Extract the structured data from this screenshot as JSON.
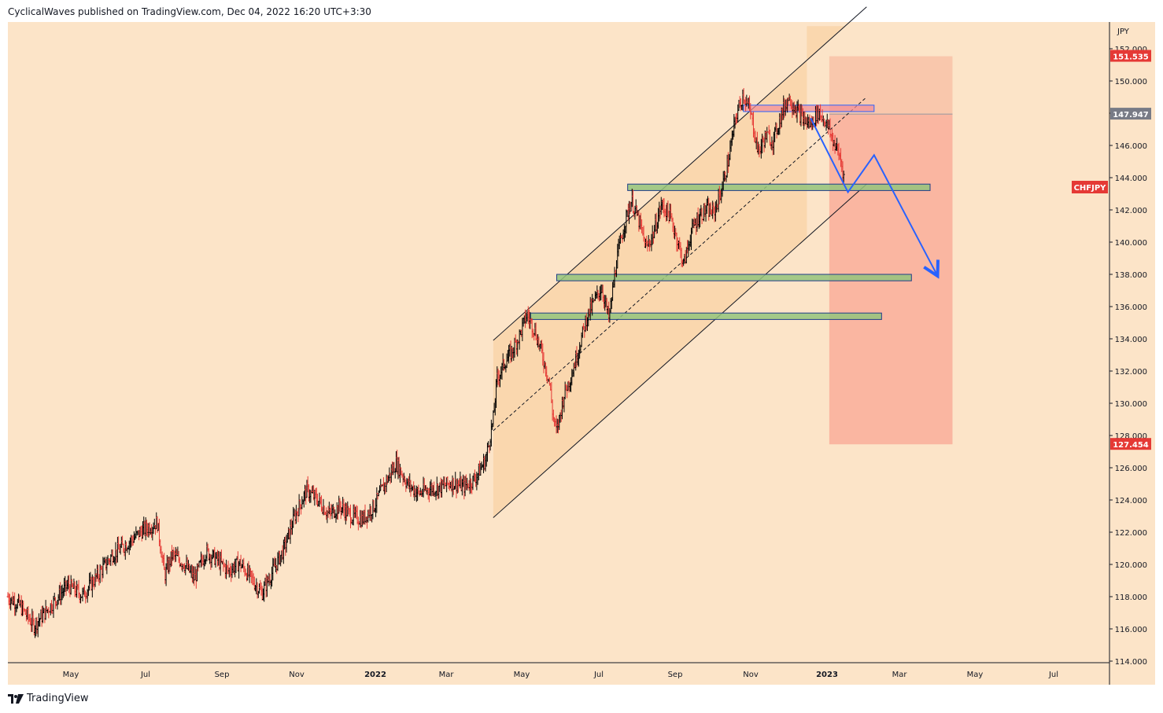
{
  "header": {
    "publish_line": "CyclicalWaves published on TradingView.com, Dec 04, 2022 16:20 UTC+3:30"
  },
  "footer": {
    "brand": "TradingView",
    "logo_icon": "tradingview-logo-icon"
  },
  "chart_data": {
    "type": "candlestick",
    "symbol": "CHFJPY",
    "currency_label": "JPY",
    "colors": {
      "up": "#000000",
      "down": "#e53935",
      "background": "#fce4c8"
    },
    "y_axis": {
      "range": [
        114,
        154
      ],
      "ticks": [
        "114.000",
        "116.000",
        "118.000",
        "120.000",
        "122.000",
        "124.000",
        "126.000",
        "128.000",
        "130.000",
        "132.000",
        "134.000",
        "136.000",
        "138.000",
        "140.000",
        "142.000",
        "144.000",
        "146.000",
        "148.000",
        "150.000",
        "152.000"
      ]
    },
    "x_axis": {
      "ticks": [
        {
          "label": "May",
          "bold": false
        },
        {
          "label": "Jul",
          "bold": false
        },
        {
          "label": "Sep",
          "bold": false
        },
        {
          "label": "Nov",
          "bold": false
        },
        {
          "label": "2022",
          "bold": true
        },
        {
          "label": "Mar",
          "bold": false
        },
        {
          "label": "May",
          "bold": false
        },
        {
          "label": "Jul",
          "bold": false
        },
        {
          "label": "Sep",
          "bold": false
        },
        {
          "label": "Nov",
          "bold": false
        },
        {
          "label": "2023",
          "bold": true
        },
        {
          "label": "Mar",
          "bold": false
        },
        {
          "label": "May",
          "bold": false
        },
        {
          "label": "Jul",
          "bold": false
        }
      ]
    },
    "price_tags": [
      {
        "value": "151.535",
        "y": 151.535,
        "color": "#e53935"
      },
      {
        "value": "147.947",
        "y": 147.947,
        "color": "#787b86"
      },
      {
        "value": "127.454",
        "y": 127.454,
        "color": "#e53935"
      }
    ],
    "symbol_tag_color": "#e53935",
    "price_path": [
      [
        0,
        118.0
      ],
      [
        3,
        117.5
      ],
      [
        7,
        116.2
      ],
      [
        12,
        117.6
      ],
      [
        16,
        118.7
      ],
      [
        20,
        118.1
      ],
      [
        24,
        119.3
      ],
      [
        28,
        120.6
      ],
      [
        32,
        121.3
      ],
      [
        36,
        122.1
      ],
      [
        40,
        122.6
      ],
      [
        42,
        119.3
      ],
      [
        44,
        120.6
      ],
      [
        47,
        120.1
      ],
      [
        50,
        119.1
      ],
      [
        53,
        120.8
      ],
      [
        56,
        120.3
      ],
      [
        59,
        119.6
      ],
      [
        62,
        120.1
      ],
      [
        65,
        119.2
      ],
      [
        68,
        118.2
      ],
      [
        71,
        119.6
      ],
      [
        74,
        121.0
      ],
      [
        77,
        123.1
      ],
      [
        80,
        124.6
      ],
      [
        83,
        124.0
      ],
      [
        86,
        123.1
      ],
      [
        89,
        123.6
      ],
      [
        92,
        123.0
      ],
      [
        95,
        122.8
      ],
      [
        98,
        123.6
      ],
      [
        101,
        125.0
      ],
      [
        104,
        126.3
      ],
      [
        107,
        125.0
      ],
      [
        110,
        124.4
      ],
      [
        113,
        124.7
      ],
      [
        116,
        124.8
      ],
      [
        119,
        125.1
      ],
      [
        122,
        124.8
      ],
      [
        125,
        125.3
      ],
      [
        128,
        126.5
      ],
      [
        130,
        129.0
      ],
      [
        131,
        131.5
      ],
      [
        133,
        132.5
      ],
      [
        135,
        133.2
      ],
      [
        137,
        134.2
      ],
      [
        139,
        135.5
      ],
      [
        141,
        134.6
      ],
      [
        143,
        133.1
      ],
      [
        145,
        131.4
      ],
      [
        146,
        129.2
      ],
      [
        147,
        128.2
      ],
      [
        149,
        130.6
      ],
      [
        151,
        131.8
      ],
      [
        153,
        133.5
      ],
      [
        155,
        135.3
      ],
      [
        157,
        136.3
      ],
      [
        159,
        137.2
      ],
      [
        161,
        135.2
      ],
      [
        163,
        138.8
      ],
      [
        165,
        141.0
      ],
      [
        167,
        142.6
      ],
      [
        169,
        141.3
      ],
      [
        171,
        139.6
      ],
      [
        173,
        140.6
      ],
      [
        175,
        142.3
      ],
      [
        177,
        141.8
      ],
      [
        179,
        140.4
      ],
      [
        181,
        138.6
      ],
      [
        183,
        140.6
      ],
      [
        185,
        141.6
      ],
      [
        187,
        142.0
      ],
      [
        189,
        141.8
      ],
      [
        191,
        143.1
      ],
      [
        193,
        145.1
      ],
      [
        195,
        147.8
      ],
      [
        197,
        149.2
      ],
      [
        199,
        147.9
      ],
      [
        201,
        145.6
      ],
      [
        203,
        146.6
      ],
      [
        205,
        146.3
      ],
      [
        207,
        147.8
      ],
      [
        209,
        149.0
      ],
      [
        211,
        148.3
      ],
      [
        213,
        147.6
      ],
      [
        215,
        147.3
      ],
      [
        217,
        148.1
      ],
      [
        219,
        147.5
      ],
      [
        221,
        146.3
      ],
      [
        223,
        145.2
      ],
      [
        224,
        143.9
      ]
    ],
    "channel": {
      "upper": [
        [
          130,
          133.9
        ],
        [
          230,
          154.6
        ]
      ],
      "middle": [
        [
          130,
          128.3
        ],
        [
          230,
          149.0
        ]
      ],
      "lower": [
        [
          130,
          122.9
        ],
        [
          230,
          143.6
        ]
      ],
      "fill_until_x": 214
    },
    "zones": [
      {
        "name": "resistance-zone",
        "x1": 197,
        "x2": 232,
        "y1": 148.1,
        "y2": 148.5,
        "color": "red"
      },
      {
        "name": "support-zone-143",
        "x1": 166,
        "x2": 247,
        "y1": 143.2,
        "y2": 143.6,
        "color": "green"
      },
      {
        "name": "support-zone-138",
        "x1": 147,
        "x2": 242,
        "y1": 137.6,
        "y2": 138.0,
        "color": "green"
      },
      {
        "name": "support-zone-135",
        "x1": 140,
        "x2": 234,
        "y1": 135.2,
        "y2": 135.6,
        "color": "green"
      }
    ],
    "short_position": {
      "x1": 220,
      "x2": 253,
      "entry": 147.947,
      "stop": 151.535,
      "target": 127.454
    },
    "projection_path": [
      [
        215,
        147.7
      ],
      [
        225,
        143.1
      ],
      [
        232,
        145.4
      ],
      [
        249,
        137.9
      ]
    ]
  }
}
